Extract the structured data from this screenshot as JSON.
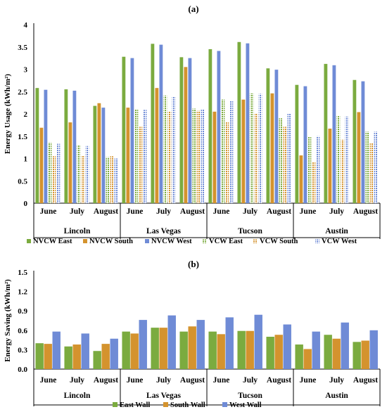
{
  "colors": {
    "green": "#7bab3f",
    "orange": "#d4932e",
    "blue": "#6f8bd6"
  },
  "chart_data": [
    {
      "type": "bar",
      "title": "(a)",
      "ylabel": "Energy Usage (kWh/m²)",
      "ylim": [
        0,
        4
      ],
      "yticks": [
        "0",
        "0.5",
        "1",
        "1.5",
        "2",
        "2.5",
        "3",
        "3.5",
        "4"
      ],
      "grid": false,
      "groups": [
        "Lincoln",
        "Las Vegas",
        "Tucson",
        "Austin"
      ],
      "categories": [
        "June",
        "July",
        "August",
        "June",
        "July",
        "August",
        "June",
        "July",
        "August",
        "June",
        "July",
        "August"
      ],
      "legend_position": "bottom",
      "series": [
        {
          "name": "NVCW East",
          "color": "green",
          "pattern": "solid",
          "values": [
            2.58,
            2.55,
            2.18,
            3.28,
            3.57,
            3.27,
            3.45,
            3.61,
            3.02,
            2.65,
            3.12,
            2.76
          ]
        },
        {
          "name": "NVCW South",
          "color": "orange",
          "pattern": "solid",
          "values": [
            1.69,
            1.81,
            2.24,
            2.14,
            2.58,
            3.05,
            2.05,
            2.32,
            2.46,
            1.07,
            1.67,
            2.04
          ]
        },
        {
          "name": "NVCW West",
          "color": "blue",
          "pattern": "solid",
          "values": [
            2.54,
            2.52,
            2.14,
            3.25,
            3.55,
            3.25,
            3.41,
            3.58,
            2.99,
            2.62,
            3.09,
            2.73
          ]
        },
        {
          "name": "VCW  East",
          "color": "green",
          "pattern": "dotted",
          "values": [
            1.36,
            1.3,
            1.03,
            2.1,
            2.41,
            2.12,
            2.32,
            2.46,
            1.9,
            1.48,
            1.95,
            1.6
          ]
        },
        {
          "name": "VCW  South",
          "color": "orange",
          "pattern": "dotted",
          "values": [
            1.05,
            1.06,
            1.05,
            1.71,
            2.05,
            2.07,
            1.81,
            2.01,
            1.71,
            0.93,
            1.42,
            1.35
          ]
        },
        {
          "name": "VCW  West",
          "color": "blue",
          "pattern": "dotted",
          "values": [
            1.33,
            1.28,
            1.0,
            2.09,
            2.39,
            2.1,
            2.3,
            2.45,
            2.0,
            1.5,
            1.94,
            1.6
          ]
        }
      ]
    },
    {
      "type": "bar",
      "title": "(b)",
      "ylabel": "Energy Saving (kWh/m²)",
      "ylim": [
        0,
        1.5
      ],
      "yticks": [
        "0.0",
        "0.3",
        "0.6",
        "0.9",
        "1.2",
        "1.5"
      ],
      "grid": false,
      "groups": [
        "Lincoln",
        "Las Vegas",
        "Tucson",
        "Austin"
      ],
      "categories": [
        "June",
        "July",
        "August",
        "June",
        "July",
        "August",
        "June",
        "July",
        "August",
        "June",
        "July",
        "August"
      ],
      "legend_position": "bottom",
      "series": [
        {
          "name": "East Wall",
          "color": "green",
          "pattern": "solid",
          "values": [
            0.4,
            0.35,
            0.28,
            0.58,
            0.64,
            0.58,
            0.58,
            0.59,
            0.5,
            0.38,
            0.53,
            0.42
          ]
        },
        {
          "name": "South Wall",
          "color": "orange",
          "pattern": "solid",
          "values": [
            0.39,
            0.38,
            0.39,
            0.55,
            0.64,
            0.66,
            0.54,
            0.59,
            0.53,
            0.31,
            0.47,
            0.44
          ]
        },
        {
          "name": "West Wall",
          "color": "blue",
          "pattern": "solid",
          "values": [
            0.58,
            0.55,
            0.47,
            0.76,
            0.83,
            0.76,
            0.8,
            0.84,
            0.69,
            0.58,
            0.72,
            0.6
          ]
        }
      ]
    }
  ]
}
